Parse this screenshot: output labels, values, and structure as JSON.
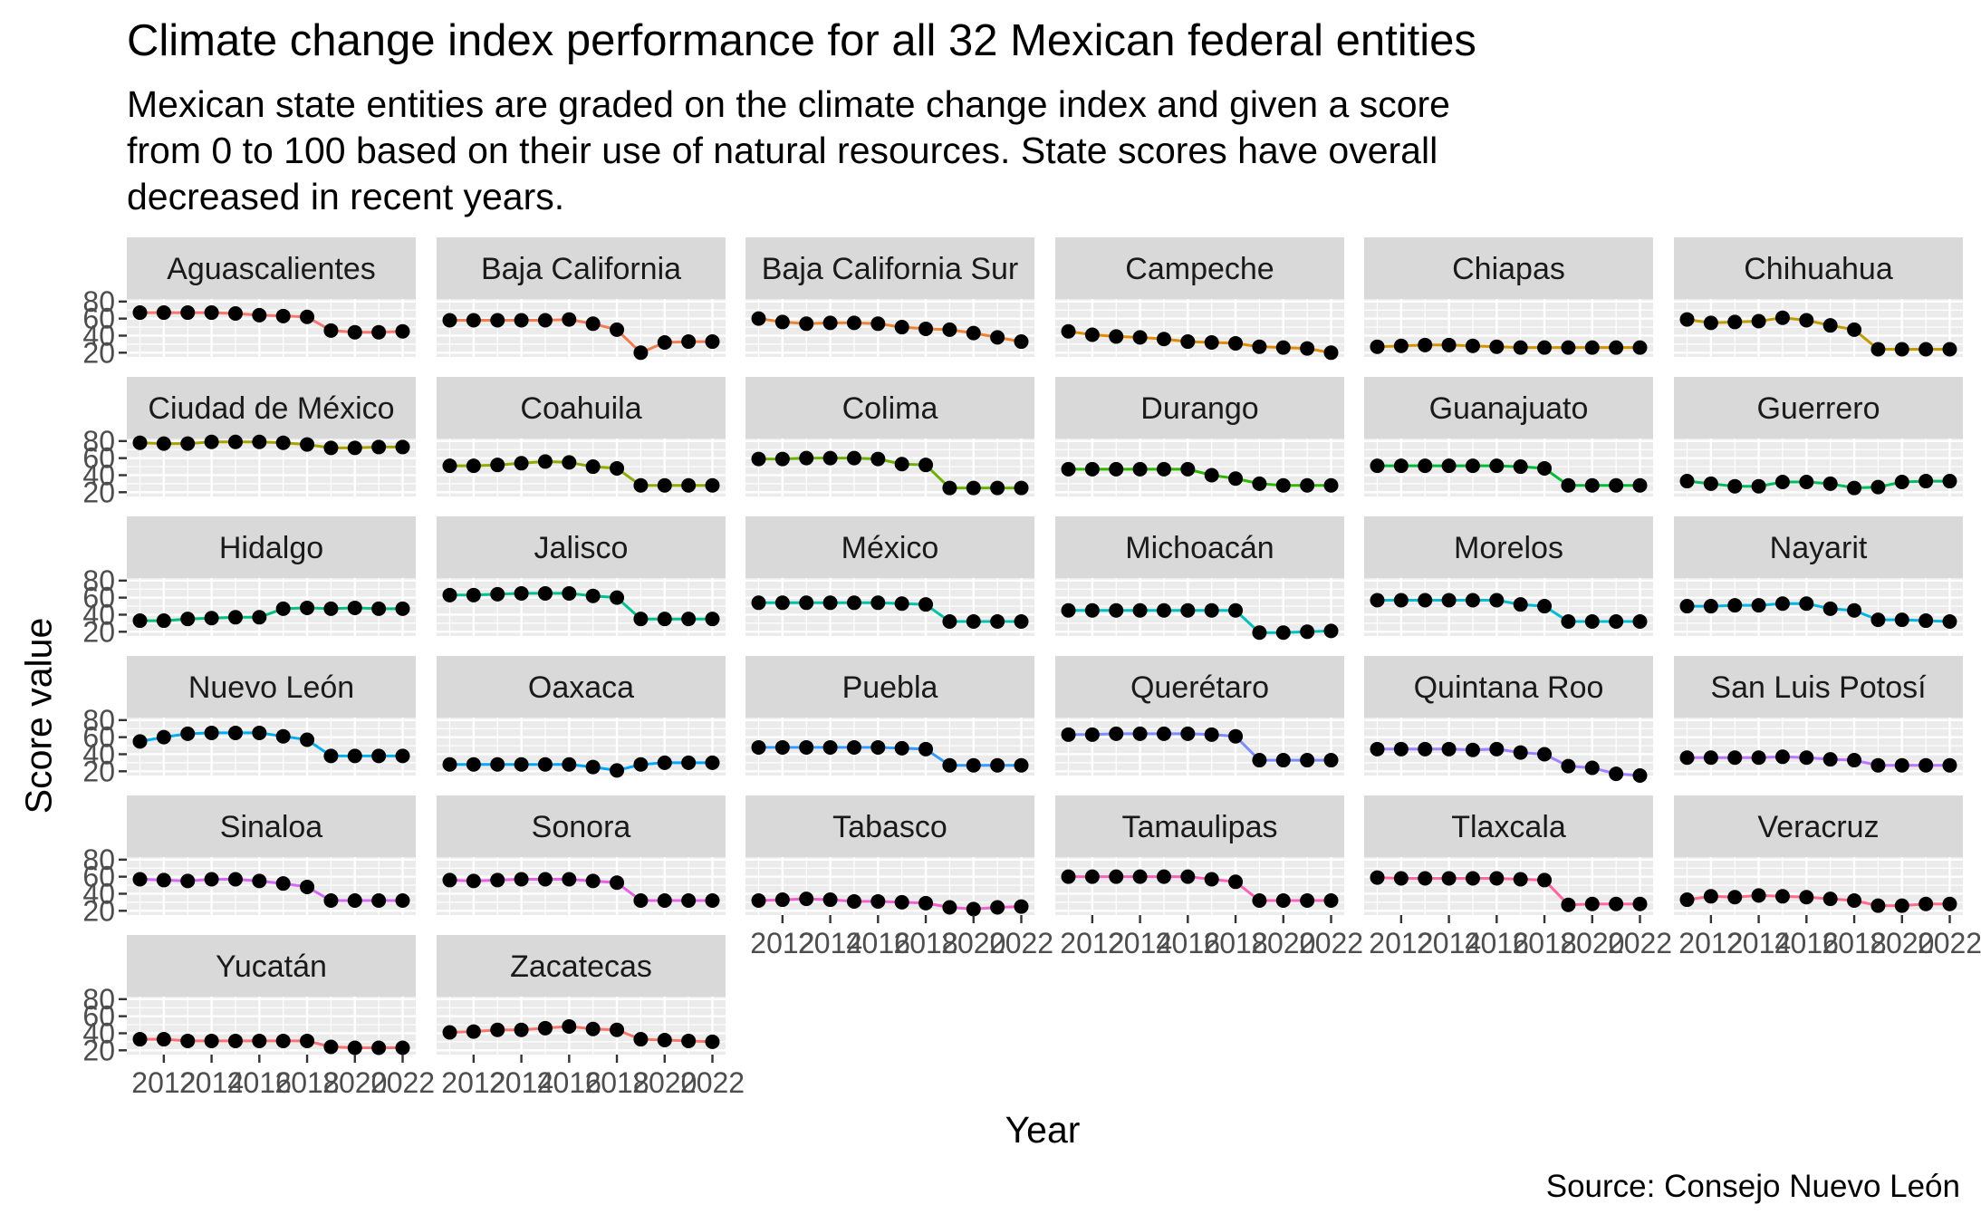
{
  "title": "Climate change index performance for all 32 Mexican federal entities",
  "subtitle_lines": [
    "Mexican state entities are graded on the climate change index and given a score",
    "from 0 to 100 based on their use of natural resources. State scores have overall",
    "decreased in recent years."
  ],
  "caption": "Source: Consejo Nuevo León",
  "chart_data": {
    "type": "line",
    "facet": "wrap",
    "ncol": 6,
    "xlabel": "Year",
    "ylabel": "Score value",
    "x": [
      2011,
      2012,
      2013,
      2014,
      2015,
      2016,
      2017,
      2018,
      2019,
      2020,
      2021,
      2022
    ],
    "x_ticks": [
      2012,
      2014,
      2016,
      2018,
      2020,
      2022
    ],
    "y_ticks": [
      20,
      40,
      60,
      80
    ],
    "ylim": [
      15,
      83
    ],
    "points": true,
    "grid": true,
    "legend": "none",
    "series": [
      {
        "name": "Aguascalientes",
        "color": "#F8766D",
        "values": [
          67,
          67,
          67,
          67,
          66,
          64,
          63,
          62,
          46,
          44,
          44,
          45
        ]
      },
      {
        "name": "Baja California",
        "color": "#F47C52",
        "values": [
          58,
          58,
          58,
          58,
          58,
          59,
          54,
          47,
          20,
          32,
          33,
          33
        ]
      },
      {
        "name": "Baja California Sur",
        "color": "#EB8335",
        "values": [
          60,
          56,
          54,
          55,
          55,
          54,
          50,
          48,
          47,
          43,
          38,
          33
        ]
      },
      {
        "name": "Campeche",
        "color": "#E08B00",
        "values": [
          45,
          41,
          39,
          38,
          36,
          33,
          32,
          31,
          27,
          26,
          25,
          20
        ]
      },
      {
        "name": "Chiapas",
        "color": "#D29300",
        "values": [
          27,
          28,
          29,
          29,
          28,
          27,
          26,
          26,
          26,
          26,
          26,
          26
        ]
      },
      {
        "name": "Chihuahua",
        "color": "#C09B00",
        "values": [
          59,
          55,
          56,
          57,
          61,
          58,
          52,
          47,
          24,
          24,
          24,
          24
        ]
      },
      {
        "name": "Ciudad de México",
        "color": "#AAA200",
        "values": [
          78,
          77,
          77,
          79,
          79,
          79,
          78,
          76,
          72,
          72,
          73,
          73
        ]
      },
      {
        "name": "Coahuila",
        "color": "#8FAA00",
        "values": [
          51,
          51,
          52,
          54,
          56,
          55,
          50,
          48,
          28,
          28,
          28,
          28
        ]
      },
      {
        "name": "Colima",
        "color": "#6BB100",
        "values": [
          59,
          59,
          60,
          60,
          60,
          59,
          53,
          52,
          25,
          25,
          25,
          25
        ]
      },
      {
        "name": "Durango",
        "color": "#31B600",
        "values": [
          47,
          47,
          47,
          47,
          47,
          47,
          40,
          36,
          30,
          28,
          28,
          28
        ]
      },
      {
        "name": "Guanajuato",
        "color": "#00BA38",
        "values": [
          51,
          51,
          51,
          51,
          51,
          51,
          50,
          48,
          28,
          28,
          28,
          28
        ]
      },
      {
        "name": "Guerrero",
        "color": "#00BD5C",
        "values": [
          33,
          30,
          27,
          27,
          32,
          32,
          30,
          25,
          26,
          32,
          33,
          33
        ]
      },
      {
        "name": "Hidalgo",
        "color": "#00BF78",
        "values": [
          33,
          33,
          35,
          36,
          37,
          37,
          47,
          48,
          47,
          48,
          47,
          47
        ]
      },
      {
        "name": "Jalisco",
        "color": "#00C091",
        "values": [
          63,
          63,
          64,
          65,
          65,
          65,
          62,
          60,
          35,
          35,
          35,
          35
        ]
      },
      {
        "name": "México",
        "color": "#00C1A7",
        "values": [
          54,
          54,
          54,
          54,
          54,
          54,
          53,
          52,
          32,
          32,
          32,
          32
        ]
      },
      {
        "name": "Michoacán",
        "color": "#00BFBC",
        "values": [
          45,
          45,
          45,
          45,
          45,
          45,
          45,
          45,
          19,
          19,
          20,
          21
        ]
      },
      {
        "name": "Morelos",
        "color": "#00BCD0",
        "values": [
          57,
          57,
          57,
          57,
          57,
          57,
          52,
          50,
          32,
          32,
          32,
          32
        ]
      },
      {
        "name": "Nayarit",
        "color": "#00B6E1",
        "values": [
          50,
          50,
          51,
          51,
          53,
          53,
          47,
          45,
          34,
          34,
          33,
          32
        ]
      },
      {
        "name": "Nuevo León",
        "color": "#00AEF0",
        "values": [
          55,
          60,
          64,
          65,
          65,
          65,
          61,
          57,
          38,
          38,
          38,
          38
        ]
      },
      {
        "name": "Oaxaca",
        "color": "#00A5FF",
        "values": [
          28,
          28,
          28,
          28,
          28,
          28,
          25,
          21,
          28,
          30,
          30,
          30
        ]
      },
      {
        "name": "Puebla",
        "color": "#349AFF",
        "values": [
          48,
          48,
          48,
          48,
          48,
          48,
          47,
          46,
          27,
          27,
          27,
          27
        ]
      },
      {
        "name": "Querétaro",
        "color": "#7C8EFF",
        "values": [
          63,
          63,
          64,
          64,
          64,
          64,
          63,
          61,
          33,
          33,
          33,
          33
        ]
      },
      {
        "name": "Quintana Roo",
        "color": "#A281FF",
        "values": [
          46,
          46,
          46,
          46,
          45,
          46,
          42,
          40,
          26,
          24,
          17,
          15
        ]
      },
      {
        "name": "San Luis Potosí",
        "color": "#BE75FF",
        "values": [
          36,
          36,
          36,
          36,
          37,
          36,
          34,
          33,
          27,
          27,
          27,
          27
        ]
      },
      {
        "name": "Sinaloa",
        "color": "#D369F5",
        "values": [
          57,
          56,
          55,
          57,
          57,
          55,
          52,
          48,
          32,
          32,
          32,
          32
        ]
      },
      {
        "name": "Sonora",
        "color": "#E363E4",
        "values": [
          56,
          55,
          56,
          57,
          57,
          57,
          55,
          53,
          32,
          32,
          32,
          32
        ]
      },
      {
        "name": "Tabasco",
        "color": "#EF61D1",
        "values": [
          32,
          33,
          34,
          33,
          31,
          31,
          30,
          29,
          24,
          22,
          24,
          25
        ]
      },
      {
        "name": "Tamaulipas",
        "color": "#F863BB",
        "values": [
          60,
          60,
          60,
          60,
          60,
          60,
          57,
          54,
          32,
          32,
          32,
          32
        ]
      },
      {
        "name": "Tlaxcala",
        "color": "#FD67A3",
        "values": [
          59,
          58,
          58,
          58,
          58,
          58,
          57,
          56,
          27,
          28,
          28,
          28
        ]
      },
      {
        "name": "Veracruz",
        "color": "#FF6C8A",
        "values": [
          33,
          37,
          36,
          38,
          37,
          36,
          34,
          32,
          26,
          26,
          28,
          28
        ]
      },
      {
        "name": "Yucatán",
        "color": "#FD7271",
        "values": [
          33,
          33,
          31,
          31,
          31,
          31,
          31,
          31,
          24,
          23,
          23,
          23
        ]
      },
      {
        "name": "Zacatecas",
        "color": "#F8766D",
        "values": [
          41,
          42,
          44,
          44,
          46,
          48,
          45,
          44,
          33,
          32,
          31,
          30
        ]
      }
    ]
  }
}
